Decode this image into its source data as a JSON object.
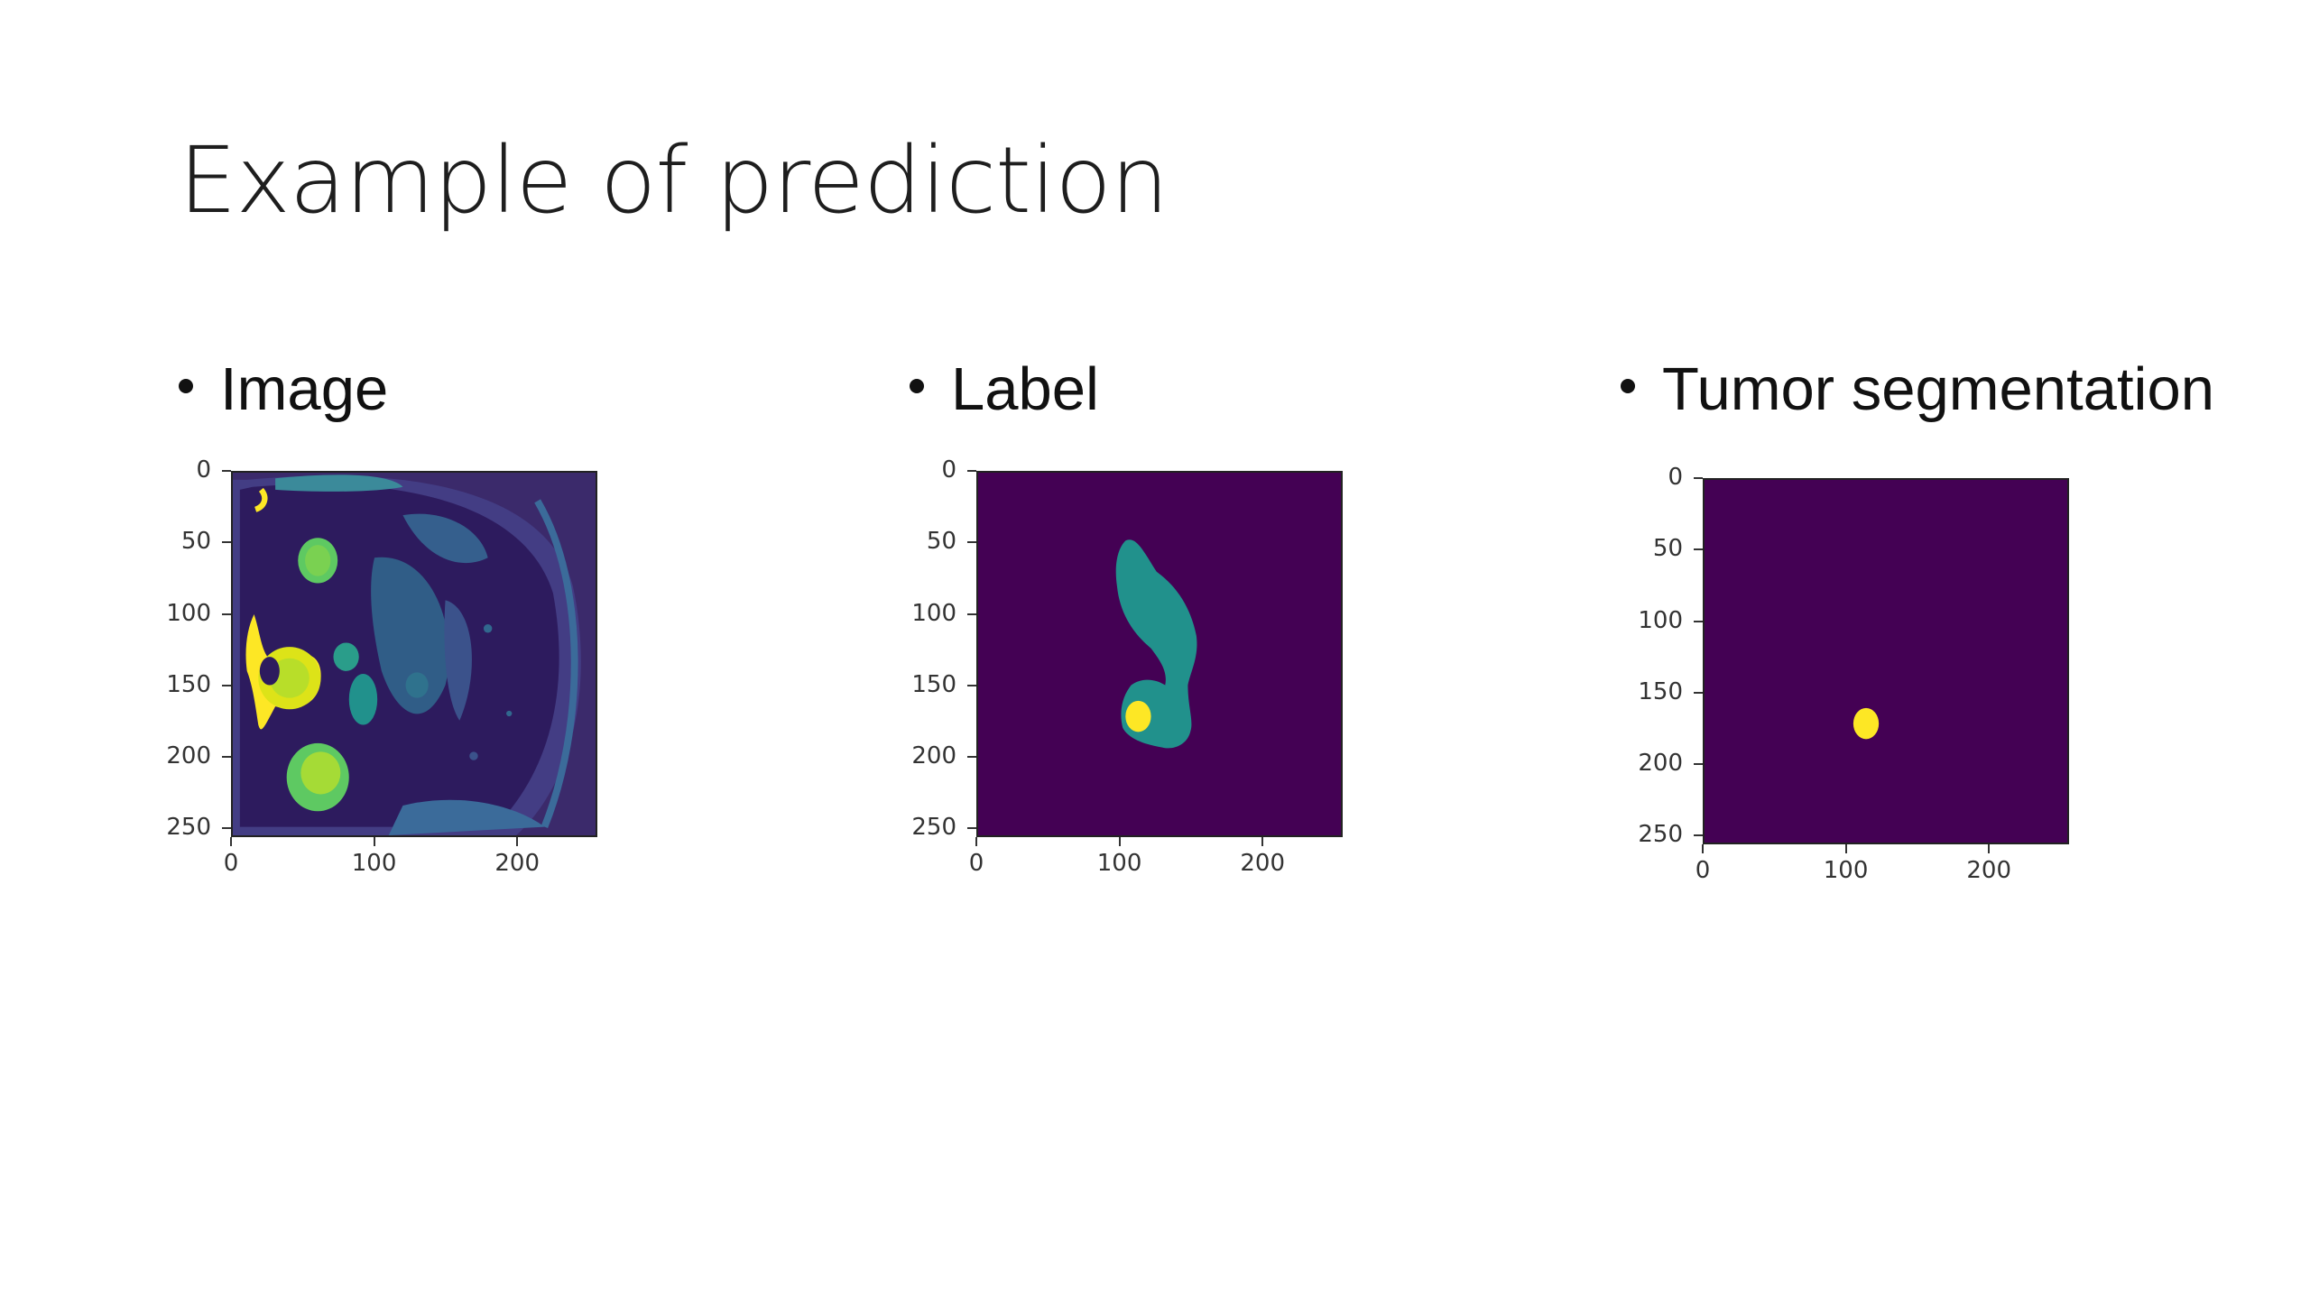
{
  "slide": {
    "title": "Example of prediction"
  },
  "bullets": [
    {
      "label": "Image"
    },
    {
      "label": "Label"
    },
    {
      "label": "Tumor segmentation"
    }
  ],
  "axes": {
    "y_ticks": [
      "0",
      "50",
      "100",
      "150",
      "200",
      "250"
    ],
    "x_ticks": [
      "0",
      "100",
      "200"
    ]
  },
  "colors": {
    "background_purple": "#440154",
    "teal": "#21918c",
    "yellow": "#fde725",
    "green": "#5ec962",
    "blue": "#3b528b"
  }
}
